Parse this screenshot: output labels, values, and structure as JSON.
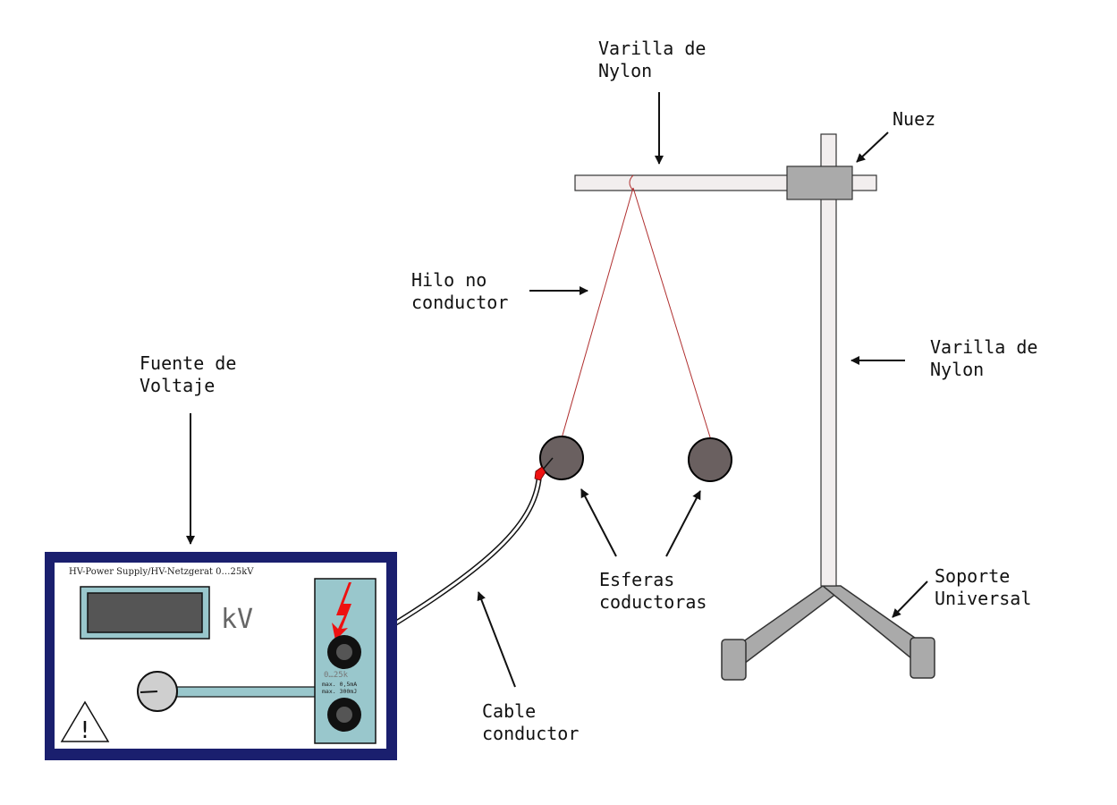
{
  "labels": {
    "top_rod": [
      "Varilla de",
      "Nylon"
    ],
    "clamp": "Nuez",
    "thread": [
      "Hilo no",
      "conductor"
    ],
    "side_rod": [
      "Varilla de",
      "Nylon"
    ],
    "source": [
      "Fuente de",
      "Voltaje"
    ],
    "spheres": [
      "Esferas",
      "coductoras"
    ],
    "stand": [
      "Soporte",
      "Universal"
    ],
    "cable": [
      "Cable",
      "conductor"
    ]
  },
  "power_supply": {
    "header": "HV-Power Supply/HV-Netzgerat 0…25kV",
    "unit": "kV",
    "range": "0…25k",
    "spec_current": "max. 0,5mA",
    "spec_energy": "max. 300mJ",
    "warning_symbol": "!"
  },
  "colors": {
    "case_border": "#1a1f6e",
    "panel": "#99c7cc",
    "sphere": "#6a6060",
    "thread": "#b03030",
    "bolt": "#ee1111",
    "clamp": "#aaaaaa",
    "rod": "#f2eeee"
  }
}
